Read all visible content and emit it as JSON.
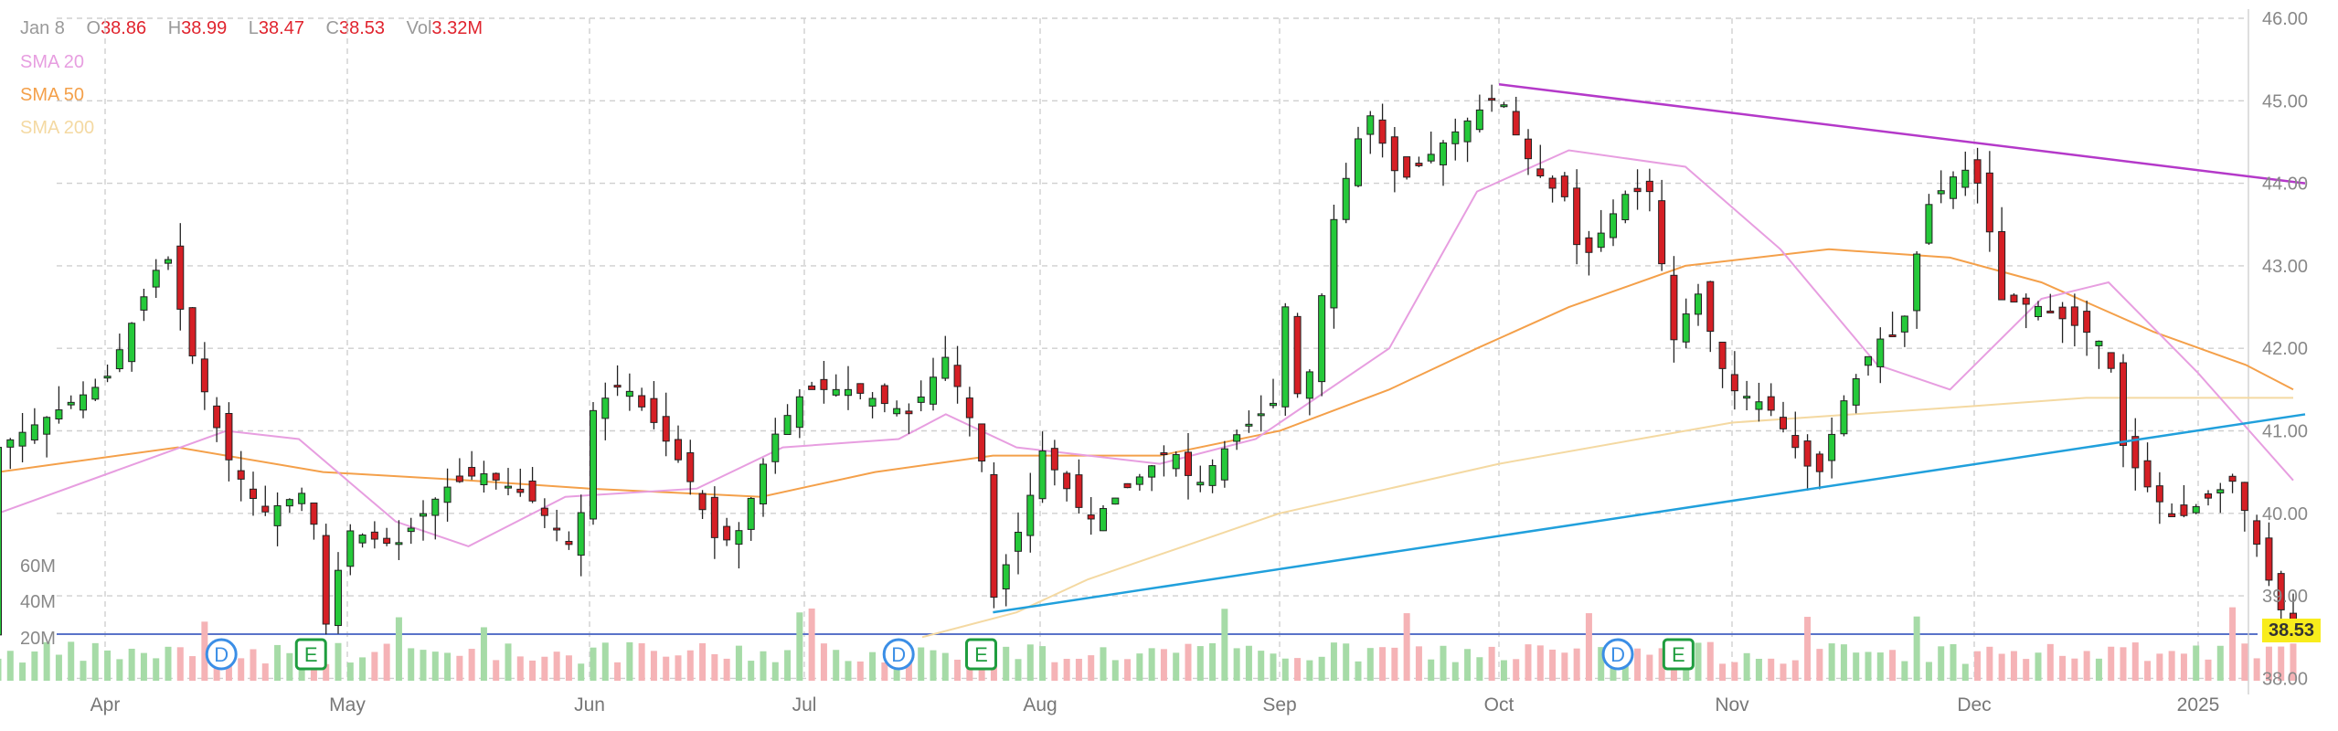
{
  "header": {
    "date": "Jan 8",
    "open_label": "O",
    "open": "38.86",
    "high_label": "H",
    "high": "38.99",
    "low_label": "L",
    "low": "38.47",
    "close_label": "C",
    "close": "38.53",
    "vol_label": "Vol",
    "vol": "3.32M"
  },
  "sma": [
    {
      "label": "SMA 20",
      "color": "#e79ee0"
    },
    {
      "label": "SMA 50",
      "color": "#f4a04a"
    },
    {
      "label": "SMA 200",
      "color": "#f4d9a2"
    }
  ],
  "last_price": "38.53",
  "volume_axis_labels": [
    "60M",
    "40M",
    "20M"
  ],
  "events": [
    {
      "type": "D",
      "month": "Apr",
      "pos": 0.48
    },
    {
      "type": "E",
      "month": "Apr",
      "pos": 0.85
    },
    {
      "type": "D",
      "month": "Jul",
      "pos": 0.4
    },
    {
      "type": "E",
      "month": "Jul",
      "pos": 0.75
    },
    {
      "type": "D",
      "month": "Oct",
      "pos": 0.51
    },
    {
      "type": "E",
      "month": "Oct",
      "pos": 0.77
    }
  ],
  "chart_data": {
    "type": "candlestick",
    "y_ticks": [
      "46.00",
      "45.00",
      "44.00",
      "43.00",
      "42.00",
      "41.00",
      "40.00",
      "39.00",
      "38.00"
    ],
    "ylim": [
      38,
      46
    ],
    "x_ticks": [
      "Apr",
      "May",
      "Jun",
      "Jul",
      "Aug",
      "Sep",
      "Oct",
      "Nov",
      "Dec",
      "2025"
    ],
    "grid": true,
    "price_path": [
      [
        "Apr",
        -0.45,
        40.8
      ],
      [
        "Apr",
        0.0,
        41.6
      ],
      [
        "Apr",
        0.25,
        43.2
      ],
      [
        "Apr",
        0.35,
        42.0
      ],
      [
        "Apr",
        0.5,
        40.7
      ],
      [
        "Apr",
        0.65,
        40.0
      ],
      [
        "Apr",
        0.85,
        40.3
      ],
      [
        "Apr",
        0.9,
        38.5
      ],
      [
        "Apr",
        1.0,
        39.8
      ],
      [
        "May",
        0.2,
        39.6
      ],
      [
        "May",
        0.4,
        40.3
      ],
      [
        "May",
        0.55,
        40.5
      ],
      [
        "May",
        0.75,
        40.2
      ],
      [
        "May",
        0.95,
        39.5
      ],
      [
        "Jun",
        0.0,
        41.2
      ],
      [
        "Jun",
        0.15,
        41.6
      ],
      [
        "Jun",
        0.3,
        41.1
      ],
      [
        "Jun",
        0.45,
        40.5
      ],
      [
        "Jun",
        0.6,
        39.6
      ],
      [
        "Jun",
        0.7,
        39.8
      ],
      [
        "Jun",
        0.85,
        40.9
      ],
      [
        "Jun",
        1.0,
        41.5
      ],
      [
        "Jul",
        0.2,
        41.5
      ],
      [
        "Jul",
        0.45,
        41.2
      ],
      [
        "Jul",
        0.6,
        41.9
      ],
      [
        "Jul",
        0.75,
        40.8
      ],
      [
        "Jul",
        0.78,
        38.8
      ],
      [
        "Jul",
        0.95,
        40.1
      ],
      [
        "Aug",
        0.0,
        40.8
      ],
      [
        "Aug",
        0.2,
        39.9
      ],
      [
        "Aug",
        0.4,
        40.4
      ],
      [
        "Aug",
        0.55,
        40.8
      ],
      [
        "Aug",
        0.65,
        40.3
      ],
      [
        "Aug",
        0.8,
        40.9
      ],
      [
        "Aug",
        1.0,
        41.4
      ],
      [
        "Sep",
        0.0,
        43.0
      ],
      [
        "Sep",
        0.1,
        41.1
      ],
      [
        "Sep",
        0.25,
        43.6
      ],
      [
        "Sep",
        0.4,
        44.9
      ],
      [
        "Sep",
        0.55,
        44.0
      ],
      [
        "Sep",
        0.75,
        44.5
      ],
      [
        "Sep",
        1.0,
        45.1
      ],
      [
        "Oct",
        0.1,
        44.4
      ],
      [
        "Oct",
        0.2,
        44.0
      ],
      [
        "Oct",
        0.3,
        43.8
      ],
      [
        "Oct",
        0.35,
        43.0
      ],
      [
        "Oct",
        0.55,
        43.9
      ],
      [
        "Oct",
        0.65,
        43.9
      ],
      [
        "Oct",
        0.75,
        42.1
      ],
      [
        "Oct",
        0.85,
        42.7
      ],
      [
        "Oct",
        1.0,
        41.4
      ],
      [
        "Nov",
        0.0,
        41.5
      ],
      [
        "Nov",
        0.15,
        41.3
      ],
      [
        "Nov",
        0.35,
        40.4
      ],
      [
        "Nov",
        0.45,
        41.3
      ],
      [
        "Nov",
        0.6,
        42.1
      ],
      [
        "Nov",
        0.7,
        42.2
      ],
      [
        "Nov",
        0.8,
        43.7
      ],
      [
        "Nov",
        0.95,
        44.2
      ],
      [
        "Dec",
        0.05,
        43.9
      ],
      [
        "Dec",
        0.1,
        42.6
      ],
      [
        "Dec",
        0.3,
        42.5
      ],
      [
        "Dec",
        0.5,
        42.2
      ],
      [
        "Dec",
        0.6,
        42.0
      ],
      [
        "Dec",
        0.65,
        40.9
      ],
      [
        "Dec",
        0.75,
        40.4
      ],
      [
        "Dec",
        0.9,
        39.9
      ],
      [
        "2025",
        0.0,
        40.1
      ],
      [
        "2025",
        0.15,
        40.4
      ],
      [
        "2025",
        0.25,
        39.6
      ],
      [
        "2025",
        0.32,
        39.0
      ],
      [
        "2025",
        0.4,
        38.53
      ]
    ],
    "sma20": [
      [
        "Apr",
        -0.45,
        40.0
      ],
      [
        "Apr",
        0.5,
        41.0
      ],
      [
        "Apr",
        0.8,
        40.9
      ],
      [
        "May",
        0.2,
        39.9
      ],
      [
        "May",
        0.5,
        39.6
      ],
      [
        "May",
        0.9,
        40.2
      ],
      [
        "Jun",
        0.5,
        40.3
      ],
      [
        "Jun",
        0.9,
        40.8
      ],
      [
        "Jul",
        0.4,
        40.9
      ],
      [
        "Jul",
        0.6,
        41.2
      ],
      [
        "Jul",
        0.9,
        40.8
      ],
      [
        "Aug",
        0.5,
        40.6
      ],
      [
        "Aug",
        0.9,
        40.9
      ],
      [
        "Sep",
        0.5,
        42.0
      ],
      [
        "Sep",
        0.9,
        43.9
      ],
      [
        "Oct",
        0.3,
        44.4
      ],
      [
        "Oct",
        0.8,
        44.2
      ],
      [
        "Nov",
        0.2,
        43.2
      ],
      [
        "Nov",
        0.6,
        41.8
      ],
      [
        "Nov",
        0.9,
        41.5
      ],
      [
        "Dec",
        0.3,
        42.6
      ],
      [
        "Dec",
        0.6,
        42.8
      ],
      [
        "2025",
        0.0,
        41.7
      ],
      [
        "2025",
        0.4,
        40.4
      ]
    ],
    "sma50": [
      [
        "Apr",
        -0.45,
        40.5
      ],
      [
        "Apr",
        0.3,
        40.8
      ],
      [
        "Apr",
        0.9,
        40.5
      ],
      [
        "May",
        0.5,
        40.4
      ],
      [
        "Jun",
        0.0,
        40.3
      ],
      [
        "Jun",
        0.8,
        40.2
      ],
      [
        "Jul",
        0.3,
        40.5
      ],
      [
        "Jul",
        0.8,
        40.7
      ],
      [
        "Aug",
        0.5,
        40.7
      ],
      [
        "Sep",
        0.0,
        41.0
      ],
      [
        "Sep",
        0.5,
        41.5
      ],
      [
        "Sep",
        0.9,
        42.0
      ],
      [
        "Oct",
        0.3,
        42.5
      ],
      [
        "Oct",
        0.8,
        43.0
      ],
      [
        "Nov",
        0.4,
        43.2
      ],
      [
        "Nov",
        0.9,
        43.1
      ],
      [
        "Dec",
        0.3,
        42.8
      ],
      [
        "Dec",
        0.8,
        42.2
      ],
      [
        "2025",
        0.2,
        41.8
      ],
      [
        "2025",
        0.4,
        41.5
      ]
    ],
    "sma200": [
      [
        "Jul",
        0.5,
        38.5
      ],
      [
        "Jul",
        0.9,
        38.8
      ],
      [
        "Aug",
        0.2,
        39.2
      ],
      [
        "Aug",
        0.6,
        39.6
      ],
      [
        "Sep",
        0.0,
        40.0
      ],
      [
        "Sep",
        0.5,
        40.3
      ],
      [
        "Oct",
        0.0,
        40.6
      ],
      [
        "Oct",
        0.6,
        40.9
      ],
      [
        "Nov",
        0.0,
        41.1
      ],
      [
        "Nov",
        0.5,
        41.2
      ],
      [
        "Dec",
        0.0,
        41.3
      ],
      [
        "Dec",
        0.5,
        41.4
      ],
      [
        "2025",
        0.0,
        41.4
      ],
      [
        "2025",
        0.4,
        41.4
      ]
    ],
    "trend_upper": [
      [
        "Oct",
        0.0,
        45.2
      ],
      [
        "2025",
        0.45,
        44.0
      ]
    ],
    "trend_lower": [
      [
        "Jul",
        0.8,
        38.8
      ],
      [
        "2025",
        0.45,
        41.2
      ]
    ],
    "volume_baseline": 19
  }
}
